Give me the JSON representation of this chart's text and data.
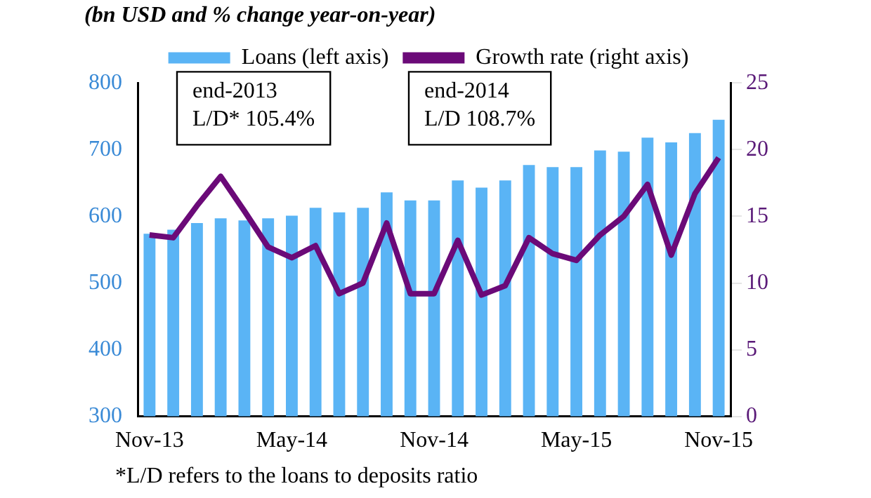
{
  "chart_data": {
    "type": "bar",
    "title": "(bn USD and % change year-on-year)",
    "categories": [
      "Nov-13",
      null,
      null,
      null,
      null,
      null,
      "May-14",
      null,
      null,
      null,
      null,
      null,
      "Nov-14",
      null,
      null,
      null,
      null,
      null,
      "May-15",
      null,
      null,
      null,
      null,
      null,
      "Nov-15"
    ],
    "series": [
      {
        "name": "Loans (left axis)",
        "color": "#5ab4f5",
        "values": [
          574,
          580,
          590,
          597,
          594,
          597,
          601,
          613,
          606,
          613,
          636,
          624,
          624,
          654,
          643,
          654,
          677,
          674,
          674,
          699,
          697,
          718,
          711,
          725,
          745
        ]
      },
      {
        "name": "Growth rate (right axis)",
        "type": "line",
        "axis": "y2",
        "color": "#6b0a78",
        "values": [
          13.6,
          13.4,
          15.8,
          18.0,
          15.4,
          12.7,
          11.9,
          12.8,
          9.2,
          10.0,
          14.5,
          9.2,
          9.2,
          13.2,
          9.1,
          9.8,
          13.4,
          12.2,
          11.7,
          13.6,
          15.0,
          17.4,
          12.1,
          16.7,
          19.4
        ]
      }
    ],
    "ylim": [
      300,
      800
    ],
    "yticks": [
      300,
      400,
      500,
      600,
      700,
      800
    ],
    "y2lim": [
      0,
      25
    ],
    "y2ticks": [
      0,
      5,
      10,
      15,
      20,
      25
    ],
    "grid": false,
    "legend": "top",
    "marker": "none",
    "annotations": [
      "end-2013\nL/D* 105.4%",
      "end-2014\nL/D 108.7%",
      "*L/D refers to the loans to deposits ratio"
    ]
  }
}
